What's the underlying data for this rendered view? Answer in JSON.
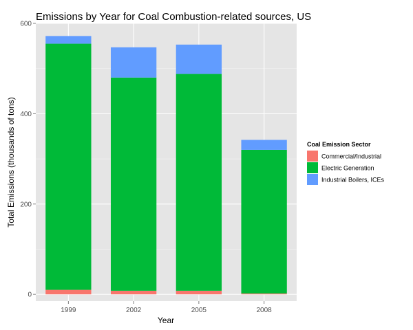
{
  "chart_data": {
    "type": "bar",
    "stacked": true,
    "title": "Emissions by Year for Coal Combustion-related sources, US",
    "xlabel": "Year",
    "ylabel": "Total Emissions (thousands of tons)",
    "categories": [
      "1999",
      "2002",
      "2005",
      "2008"
    ],
    "yticks": [
      "0",
      "200",
      "400",
      "600"
    ],
    "ylim": [
      -15,
      600
    ],
    "grid": true,
    "legend_position": "right",
    "legend_title": "Coal Emission Sector",
    "series": [
      {
        "name": "Commercial/Industrial",
        "color": "#F8766D",
        "values": [
          10,
          8,
          8,
          2
        ]
      },
      {
        "name": "Electric Generation",
        "color": "#00BA38",
        "values": [
          545,
          472,
          480,
          318
        ]
      },
      {
        "name": "Industrial Boilers, ICEs",
        "color": "#619CFF",
        "values": [
          17,
          67,
          65,
          22
        ]
      }
    ]
  }
}
